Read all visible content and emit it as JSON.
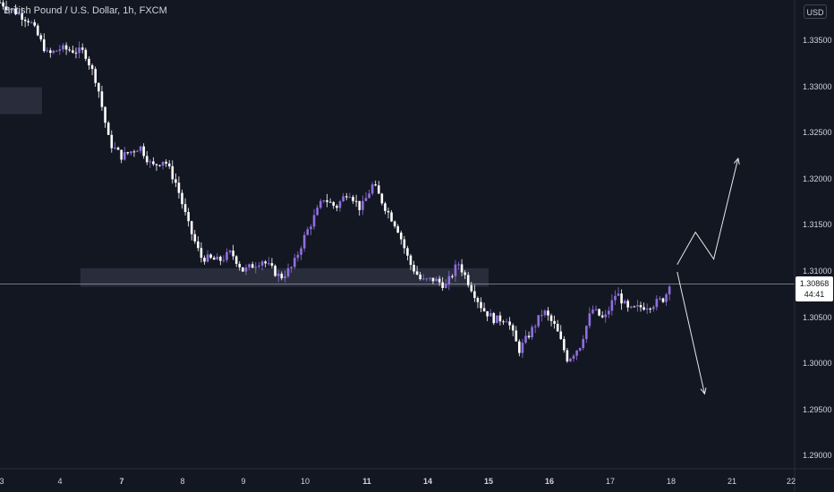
{
  "header": {
    "title": "British Pound / U.S. Dollar, 1h, FXCM",
    "currency": "USD"
  },
  "price_label": {
    "value": "1.30868",
    "countdown": "44:41"
  },
  "colors": {
    "background": "#131722",
    "candle_up": "#8f6fe0",
    "candle_down": "#ffffff",
    "zone": "#2e3140",
    "price_line": "#9598a1",
    "arrow": "#e8e8e8"
  },
  "chart_data": {
    "type": "candlestick",
    "title": "British Pound / U.S. Dollar, 1h, FXCM",
    "x_ticks": [
      "3",
      "4",
      "7",
      "8",
      "9",
      "10",
      "11",
      "14",
      "15",
      "16",
      "17",
      "18",
      "21",
      "22"
    ],
    "y_ticks": [
      "1.33500",
      "1.33000",
      "1.32500",
      "1.32000",
      "1.31500",
      "1.31000",
      "1.30500",
      "1.30000",
      "1.29500",
      "1.29000"
    ],
    "ylim": [
      1.2885,
      1.3395
    ],
    "current_price": 1.30868,
    "path": [
      [
        0,
        1.3392
      ],
      [
        0.5,
        1.3372
      ],
      [
        0.8,
        1.3335
      ],
      [
        1.0,
        1.3342
      ],
      [
        1.4,
        1.3338
      ],
      [
        1.6,
        1.3305
      ],
      [
        1.8,
        1.324
      ],
      [
        2.0,
        1.3225
      ],
      [
        2.3,
        1.3236
      ],
      [
        2.5,
        1.3214
      ],
      [
        2.7,
        1.3222
      ],
      [
        2.9,
        1.3195
      ],
      [
        3.1,
        1.315
      ],
      [
        3.3,
        1.3116
      ],
      [
        3.6,
        1.3112
      ],
      [
        3.8,
        1.3121
      ],
      [
        4.0,
        1.3101
      ],
      [
        4.3,
        1.3113
      ],
      [
        4.6,
        1.3094
      ],
      [
        4.8,
        1.3106
      ],
      [
        5.0,
        1.314
      ],
      [
        5.3,
        1.318
      ],
      [
        5.5,
        1.317
      ],
      [
        5.7,
        1.3188
      ],
      [
        5.9,
        1.3168
      ],
      [
        6.1,
        1.3195
      ],
      [
        6.3,
        1.317
      ],
      [
        6.5,
        1.3148
      ],
      [
        6.7,
        1.311
      ],
      [
        6.9,
        1.309
      ],
      [
        7.1,
        1.3092
      ],
      [
        7.3,
        1.3085
      ],
      [
        7.5,
        1.311
      ],
      [
        7.7,
        1.3085
      ],
      [
        7.9,
        1.306
      ],
      [
        8.1,
        1.3048
      ],
      [
        8.3,
        1.305
      ],
      [
        8.5,
        1.3015
      ],
      [
        8.7,
        1.3036
      ],
      [
        8.9,
        1.3058
      ],
      [
        9.1,
        1.304
      ],
      [
        9.3,
        1.3005
      ],
      [
        9.5,
        1.302
      ],
      [
        9.7,
        1.306
      ],
      [
        9.9,
        1.3048
      ],
      [
        10.1,
        1.3078
      ],
      [
        10.3,
        1.3058
      ],
      [
        10.5,
        1.3062
      ],
      [
        10.7,
        1.3065
      ],
      [
        10.9,
        1.3072
      ],
      [
        11.0,
        1.3095
      ]
    ],
    "zones": [
      {
        "x0": -0.1,
        "x1": 0.7,
        "y0": 1.33,
        "y1": 1.3271
      },
      {
        "x0": 1.33,
        "x1": 8.0,
        "y0": 1.3104,
        "y1": 1.3084
      }
    ],
    "projection_up": [
      [
        11.1,
        1.3108
      ],
      [
        11.4,
        1.3143
      ],
      [
        11.7,
        1.3114
      ],
      [
        12.1,
        1.3223
      ]
    ],
    "projection_down": [
      [
        11.1,
        1.31
      ],
      [
        11.55,
        1.2968
      ]
    ]
  }
}
